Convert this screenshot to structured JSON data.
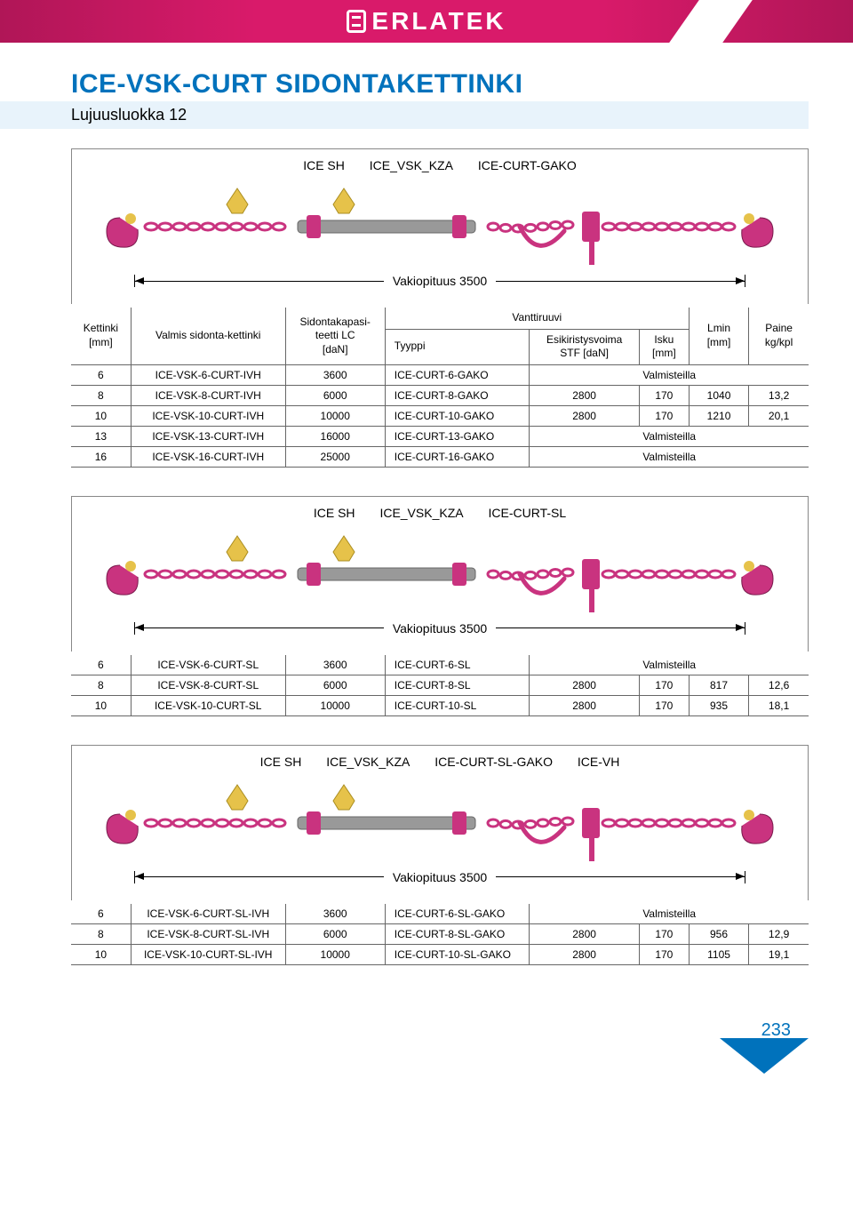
{
  "brand": "ERLATEK",
  "page": {
    "title": "ICE-VSK-CURT SIDONTAKETTINKI",
    "subtitle": "Lujuusluokka 12",
    "number": "233"
  },
  "colors": {
    "brand_pink": "#d91a6a",
    "brand_pink_dark": "#b01657",
    "title_blue": "#0072bc",
    "subtitle_bg": "#e8f3fb",
    "border": "#666666",
    "text": "#000000",
    "chain_color": "#c9337f",
    "hook_accent": "#e6c24a",
    "metal_gray": "#999999"
  },
  "font": {
    "family": "Arial",
    "title_size": 30,
    "subtitle_size": 18,
    "body_size": 12,
    "label_size": 14
  },
  "sections": [
    {
      "labels": [
        "ICE SH",
        "ICE_VSK_KZA",
        "ICE-CURT-GAKO"
      ],
      "dim_label": "Vakiopituus 3500",
      "show_header": true,
      "rows": [
        {
          "kettinki": "6",
          "valmis": "ICE-VSK-6-CURT-IVH",
          "lc": "3600",
          "tyyppi": "ICE-CURT-6-GAKO",
          "stf": "",
          "isku": "",
          "lmin": "",
          "paine": "",
          "note": "Valmisteilla"
        },
        {
          "kettinki": "8",
          "valmis": "ICE-VSK-8-CURT-IVH",
          "lc": "6000",
          "tyyppi": "ICE-CURT-8-GAKO",
          "stf": "2800",
          "isku": "170",
          "lmin": "1040",
          "paine": "13,2",
          "note": ""
        },
        {
          "kettinki": "10",
          "valmis": "ICE-VSK-10-CURT-IVH",
          "lc": "10000",
          "tyyppi": "ICE-CURT-10-GAKO",
          "stf": "2800",
          "isku": "170",
          "lmin": "1210",
          "paine": "20,1",
          "note": ""
        },
        {
          "kettinki": "13",
          "valmis": "ICE-VSK-13-CURT-IVH",
          "lc": "16000",
          "tyyppi": "ICE-CURT-13-GAKO",
          "stf": "",
          "isku": "",
          "lmin": "",
          "paine": "",
          "note": "Valmisteilla"
        },
        {
          "kettinki": "16",
          "valmis": "ICE-VSK-16-CURT-IVH",
          "lc": "25000",
          "tyyppi": "ICE-CURT-16-GAKO",
          "stf": "",
          "isku": "",
          "lmin": "",
          "paine": "",
          "note": "Valmisteilla"
        }
      ]
    },
    {
      "labels": [
        "ICE SH",
        "ICE_VSK_KZA",
        "ICE-CURT-SL"
      ],
      "dim_label": "Vakiopituus 3500",
      "show_header": false,
      "rows": [
        {
          "kettinki": "6",
          "valmis": "ICE-VSK-6-CURT-SL",
          "lc": "3600",
          "tyyppi": "ICE-CURT-6-SL",
          "stf": "",
          "isku": "",
          "lmin": "",
          "paine": "",
          "note": "Valmisteilla"
        },
        {
          "kettinki": "8",
          "valmis": "ICE-VSK-8-CURT-SL",
          "lc": "6000",
          "tyyppi": "ICE-CURT-8-SL",
          "stf": "2800",
          "isku": "170",
          "lmin": "817",
          "paine": "12,6",
          "note": ""
        },
        {
          "kettinki": "10",
          "valmis": "ICE-VSK-10-CURT-SL",
          "lc": "10000",
          "tyyppi": "ICE-CURT-10-SL",
          "stf": "2800",
          "isku": "170",
          "lmin": "935",
          "paine": "18,1",
          "note": ""
        }
      ]
    },
    {
      "labels": [
        "ICE SH",
        "ICE_VSK_KZA",
        "ICE-CURT-SL-GAKO",
        "ICE-VH"
      ],
      "dim_label": "Vakiopituus 3500",
      "show_header": false,
      "rows": [
        {
          "kettinki": "6",
          "valmis": "ICE-VSK-6-CURT-SL-IVH",
          "lc": "3600",
          "tyyppi": "ICE-CURT-6-SL-GAKO",
          "stf": "",
          "isku": "",
          "lmin": "",
          "paine": "",
          "note": "Valmisteilla"
        },
        {
          "kettinki": "8",
          "valmis": "ICE-VSK-8-CURT-SL-IVH",
          "lc": "6000",
          "tyyppi": "ICE-CURT-8-SL-GAKO",
          "stf": "2800",
          "isku": "170",
          "lmin": "956",
          "paine": "12,9",
          "note": ""
        },
        {
          "kettinki": "10",
          "valmis": "ICE-VSK-10-CURT-SL-IVH",
          "lc": "10000",
          "tyyppi": "ICE-CURT-10-SL-GAKO",
          "stf": "2800",
          "isku": "170",
          "lmin": "1105",
          "paine": "19,1",
          "note": ""
        }
      ]
    }
  ],
  "table_header": {
    "kettinki": "Kettinki",
    "kettinki_unit": "[mm]",
    "valmis": "Valmis sidonta-kettinki",
    "lc": "Sidontakapasi-teetti LC",
    "lc_unit": "[daN]",
    "vanttiruuvi": "Vanttiruuvi",
    "tyyppi": "Tyyppi",
    "stf": "Esikiristysvoima STF [daN]",
    "isku": "Isku",
    "isku_unit": "[mm]",
    "lmin": "Lmin",
    "lmin_unit": "[mm]",
    "paine": "Paine",
    "paine_unit": "kg/kpl"
  }
}
